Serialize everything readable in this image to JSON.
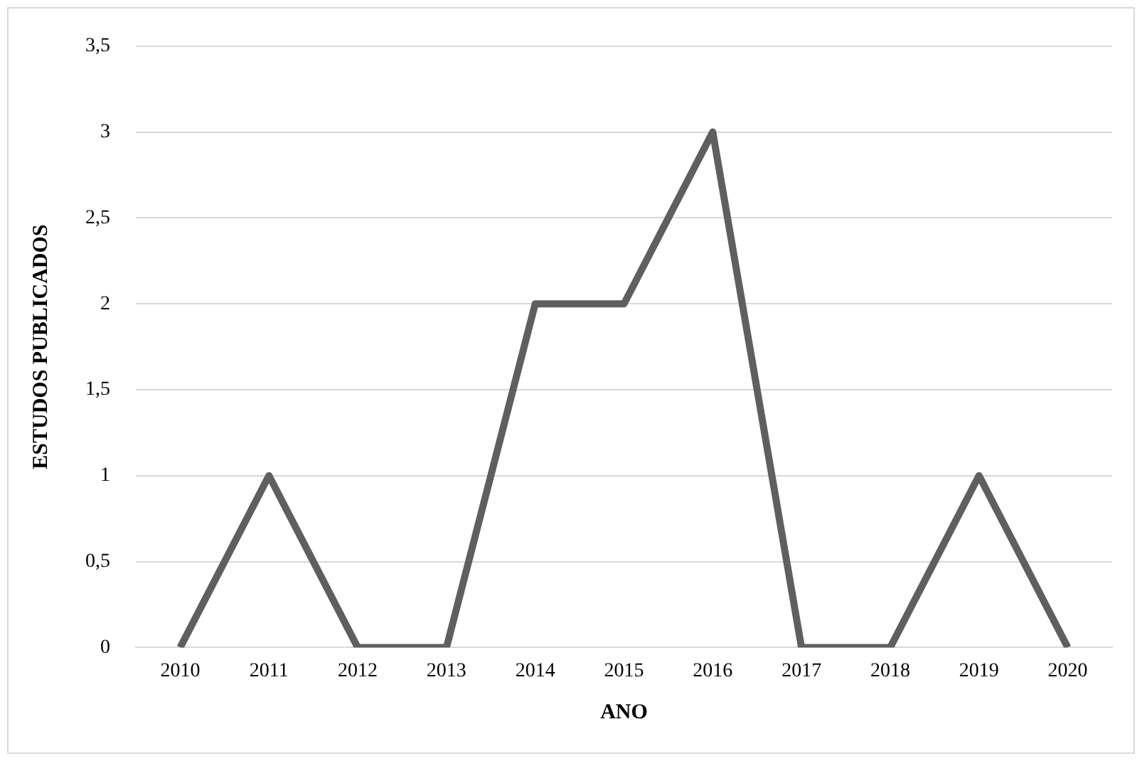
{
  "chart_data": {
    "type": "line",
    "xlabel": "ANO",
    "ylabel": "ESTUDOS PUBLICADOS",
    "categories": [
      "2010",
      "2011",
      "2012",
      "2013",
      "2014",
      "2015",
      "2016",
      "2017",
      "2018",
      "2019",
      "2020"
    ],
    "values": [
      0,
      1,
      0,
      0,
      2,
      2,
      3,
      0,
      0,
      1,
      0
    ],
    "color": "#5f5f5f",
    "ylim": [
      0,
      3.5
    ],
    "yticks": [
      0,
      {
        "value": 0.5,
        "label": "0,5"
      },
      1,
      {
        "value": 1.5,
        "label": "1,5"
      },
      2,
      {
        "value": 2.5,
        "label": "2,5"
      },
      3,
      {
        "value": 3.5,
        "label": "3,5"
      }
    ],
    "grid": "y",
    "legend": false,
    "marker": "none",
    "line_style": "solid"
  }
}
